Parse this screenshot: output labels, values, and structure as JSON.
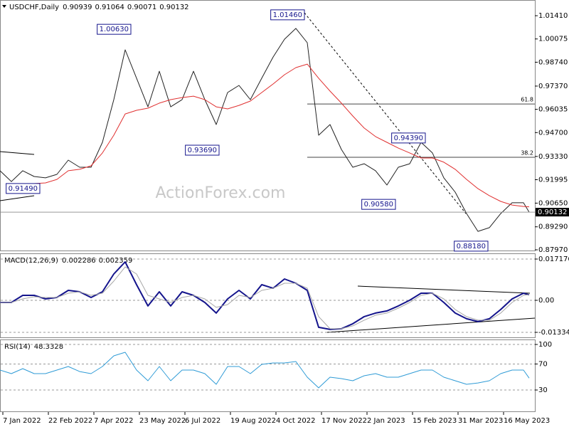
{
  "chart_data": [
    {
      "type": "line",
      "title": "USDCHF,Daily",
      "watermark": "ActionForex.com",
      "ohlc_last": {
        "open": 0.90939,
        "high": 0.91064,
        "low": 0.90071
      },
      "x": [
        0,
        8,
        16,
        24,
        32,
        40,
        48,
        56,
        64,
        72,
        80,
        88,
        96,
        104,
        112,
        120,
        128,
        136,
        144,
        152,
        160,
        168,
        176,
        184,
        192,
        200,
        208,
        216,
        224,
        232,
        240,
        248,
        256,
        264,
        272,
        280,
        288,
        296,
        304,
        312,
        320,
        328,
        336,
        344,
        352,
        360,
        368,
        372
      ],
      "xlim": [
        0,
        376
      ],
      "xticks": [
        {
          "value": 2,
          "label": "7 Jan 2022"
        },
        {
          "value": 34,
          "label": "22 Feb 2022"
        },
        {
          "value": 66,
          "label": "7 Apr 2022"
        },
        {
          "value": 98,
          "label": "23 May 2022"
        },
        {
          "value": 130,
          "label": "6 Jul 2022"
        },
        {
          "value": 162,
          "label": "19 Aug 2022"
        },
        {
          "value": 194,
          "label": "4 Oct 2022"
        },
        {
          "value": 226,
          "label": "17 Nov 2022"
        },
        {
          "value": 258,
          "label": "2 Jan 2023"
        },
        {
          "value": 290,
          "label": "15 Feb 2023"
        },
        {
          "value": 322,
          "label": "31 Mar 2023"
        },
        {
          "value": 354,
          "label": "16 May 2023"
        }
      ],
      "ylim": [
        0.8793,
        1.0223
      ],
      "yticks": [
        {
          "value": 1.0141,
          "label": "1.01410"
        },
        {
          "value": 1.00075,
          "label": "1.00075"
        },
        {
          "value": 0.9874,
          "label": "0.98740"
        },
        {
          "value": 0.9737,
          "label": "0.97370"
        },
        {
          "value": 0.96035,
          "label": "0.96035"
        },
        {
          "value": 0.947,
          "label": "0.94700"
        },
        {
          "value": 0.9333,
          "label": "0.93330"
        },
        {
          "value": 0.91995,
          "label": "0.91995"
        },
        {
          "value": 0.9065,
          "label": "0.90650"
        },
        {
          "value": 0.8929,
          "label": "0.89290"
        },
        {
          "value": 0.8797,
          "label": "0.87970"
        }
      ],
      "series": [
        {
          "color": "#222222",
          "width": 1,
          "values": [
            0.9251,
            0.9189,
            0.9251,
            0.9218,
            0.921,
            0.923,
            0.9312,
            0.9271,
            0.9271,
            0.9414,
            0.9659,
            0.9945,
            0.9782,
            0.9618,
            0.9822,
            0.9618,
            0.9659,
            0.9822,
            0.9659,
            0.9516,
            0.97,
            0.9741,
            0.9659,
            0.9782,
            0.9904,
            1.0006,
            1.0068,
            0.9986,
            0.9455,
            0.9516,
            0.9373,
            0.9271,
            0.9291,
            0.9251,
            0.9169,
            0.9271,
            0.9291,
            0.9414,
            0.9353,
            0.921,
            0.9128,
            0.9005,
            0.8903,
            0.8924,
            0.9005,
            0.9067,
            0.9067,
            0.90132
          ]
        },
        {
          "color": "#e03030",
          "width": 1,
          "values": [
            null,
            null,
            null,
            0.9177,
            0.9181,
            0.9201,
            0.9251,
            0.9259,
            0.9279,
            0.9353,
            0.9455,
            0.9577,
            0.9598,
            0.961,
            0.9639,
            0.9659,
            0.9671,
            0.9679,
            0.9659,
            0.9618,
            0.9606,
            0.9626,
            0.9651,
            0.97,
            0.9749,
            0.9802,
            0.9843,
            0.9863,
            0.9782,
            0.9708,
            0.9639,
            0.9565,
            0.9496,
            0.9447,
            0.9414,
            0.9381,
            0.9353,
            0.9324,
            0.9324,
            0.93,
            0.9259,
            0.9201,
            0.9148,
            0.9108,
            0.9075,
            0.9054,
            0.9046,
            0.9044
          ]
        }
      ],
      "annotations": [
        {
          "value": 1.0063,
          "label": "1.00630",
          "x": 92
        },
        {
          "value": 1.0146,
          "label": "1.01460",
          "x": 214
        },
        {
          "value": 0.9369,
          "label": "0.93690",
          "x": 154
        },
        {
          "value": 0.9149,
          "label": "0.91490",
          "x": 28
        },
        {
          "value": 0.9058,
          "label": "0.90580",
          "x": 278
        },
        {
          "value": 0.9439,
          "label": "0.94390",
          "x": 299
        },
        {
          "value": 0.8818,
          "label": "0.88180",
          "x": 343
        }
      ],
      "fib_levels": [
        {
          "ratio": 61.8,
          "price": 0.9634,
          "from": 216
        },
        {
          "ratio": 38.2,
          "price": 0.9328,
          "from": 216
        }
      ]
    },
    {
      "type": "line",
      "title": "MACD(12,26,9)",
      "ylim": [
        -0.01541,
        0.01925
      ],
      "tick_lines": true,
      "yticks": [
        0.017176,
        {
          "value": 0,
          "label": "0.00"
        },
        -0.01334
      ],
      "series": [
        {
          "color": "#14148c",
          "width": 2,
          "values": [
            -0.00088,
            -0.00088,
            0.00208,
            0.00208,
            0.0006,
            0.00119,
            0.00415,
            0.00356,
            0.00119,
            0.00356,
            0.01096,
            0.01599,
            0.00652,
            -0.00236,
            0.00356,
            -0.00236,
            0.00356,
            0.00208,
            -0.00088,
            -0.00532,
            0.0006,
            0.00415,
            0.0006,
            0.00652,
            0.00504,
            0.00889,
            0.00711,
            0.00415,
            -0.01124,
            -0.01213,
            -0.01183,
            -0.00976,
            -0.0068,
            -0.00532,
            -0.00443,
            -0.00236,
            1e-05,
            0.00297,
            0.00297,
            -0.00088,
            -0.00532,
            -0.00769,
            -0.00887,
            -0.00769,
            -0.00384,
            0.0006,
            0.00297,
            0.002286
          ]
        },
        {
          "color": "#a8a8a8",
          "width": 1,
          "values": [
            -0.00088,
            -0.00088,
            0.0006,
            0.00149,
            0.00119,
            0.00119,
            0.00297,
            0.00356,
            0.00208,
            0.00297,
            0.008,
            0.01392,
            0.01096,
            0.00208,
            0.0006,
            -0.00088,
            0.00119,
            0.00208,
            0.0006,
            -0.00295,
            -0.00177,
            0.00208,
            0.00119,
            0.00415,
            0.00504,
            0.00711,
            0.00711,
            0.00504,
            -0.0068,
            -0.01183,
            -0.01183,
            -0.01065,
            -0.00828,
            -0.00621,
            -0.00532,
            -0.00325,
            -0.00088,
            0.00208,
            0.00297,
            0.0006,
            -0.00384,
            -0.0068,
            -0.00828,
            -0.00828,
            -0.00532,
            -0.00088,
            0.00208,
            0.002359
          ]
        }
      ]
    },
    {
      "type": "line",
      "title": "RSI(14)",
      "ylim": [
        -2.8,
        106.6
      ],
      "tick_lines": true,
      "yticks": [
        100,
        70,
        30
      ],
      "series": [
        {
          "color": "#2f9bd6",
          "width": 1,
          "values": [
            60.6,
            55.2,
            62.8,
            55.2,
            55.2,
            60.6,
            66.1,
            58.4,
            55.2,
            66.1,
            82.5,
            88.0,
            60.6,
            44.2,
            66.1,
            44.2,
            60.6,
            60.6,
            55.2,
            38.8,
            66.1,
            66.1,
            55.2,
            69.4,
            71.6,
            71.6,
            73.8,
            49.7,
            33.3,
            49.7,
            47.5,
            44.2,
            51.9,
            55.2,
            49.7,
            49.7,
            55.2,
            60.6,
            60.6,
            49.7,
            44.2,
            38.8,
            40.9,
            44.2,
            55.2,
            60.6,
            60.6,
            48.3328
          ]
        }
      ]
    }
  ]
}
